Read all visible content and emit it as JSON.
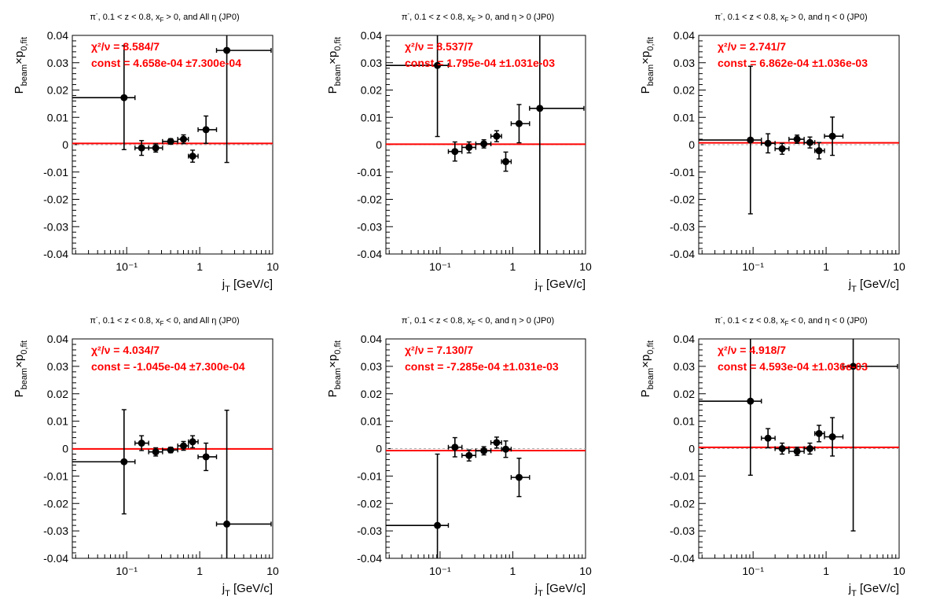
{
  "chart_data": [
    {
      "type": "scatter",
      "title": "π⁻, 0.1 < z < 0.8, x_F > 0, and All η (JP0)",
      "title_parts": {
        "main": "π",
        "sup": "-",
        "rest": ", 0.1 < z < 0.8, x",
        "sub": "F",
        "tail": " > 0, and All η (JP0)"
      },
      "xlabel": "j_T [GeV/c]",
      "ylabel": "P_beam×p_0,fit",
      "xscale": "log",
      "xlim": [
        0.018,
        10
      ],
      "ylim": [
        -0.04,
        0.04
      ],
      "x_tick_labels": [
        "10⁻¹",
        "1",
        "10"
      ],
      "y_tick_labels": [
        "-0.04",
        "-0.03",
        "-0.02",
        "-0.01",
        "0",
        "0.01",
        "0.02",
        "0.03",
        "0.04"
      ],
      "fit_text": {
        "chi2": "χ²/ν = 8.584/7",
        "const": "const = 4.658e-04  ±7.300e-04"
      },
      "fit_value": 0.0004658,
      "fit_color": "#ff0000",
      "points": [
        {
          "x": 0.092,
          "xlo": 0.018,
          "xhi": 0.13,
          "y": 0.0172,
          "ey": 0.019
        },
        {
          "x": 0.16,
          "xlo": 0.13,
          "xhi": 0.2,
          "y": -0.0012,
          "ey": 0.0027
        },
        {
          "x": 0.25,
          "xlo": 0.2,
          "xhi": 0.31,
          "y": -0.0012,
          "ey": 0.0015
        },
        {
          "x": 0.4,
          "xlo": 0.31,
          "xhi": 0.5,
          "y": 0.0012,
          "ey": 0.001
        },
        {
          "x": 0.6,
          "xlo": 0.5,
          "xhi": 0.7,
          "y": 0.002,
          "ey": 0.0016
        },
        {
          "x": 0.8,
          "xlo": 0.7,
          "xhi": 0.95,
          "y": -0.0042,
          "ey": 0.0022
        },
        {
          "x": 1.22,
          "xlo": 0.95,
          "xhi": 1.7,
          "y": 0.0055,
          "ey": 0.005
        },
        {
          "x": 2.35,
          "xlo": 1.7,
          "xhi": 9.5,
          "y": 0.0345,
          "ey": 0.041
        }
      ]
    },
    {
      "type": "scatter",
      "title": "π⁻, 0.1 < z < 0.8, x_F > 0, and η > 0 (JP0)",
      "title_parts": {
        "main": "π",
        "sup": "-",
        "rest": ", 0.1 < z < 0.8, x",
        "sub": "F",
        "tail": " > 0, and  η > 0 (JP0)"
      },
      "xlabel": "j_T [GeV/c]",
      "ylabel": "P_beam×p_0,fit",
      "xscale": "log",
      "xlim": [
        0.018,
        10
      ],
      "ylim": [
        -0.04,
        0.04
      ],
      "x_tick_labels": [
        "10⁻¹",
        "1",
        "10"
      ],
      "y_tick_labels": [
        "-0.04",
        "-0.03",
        "-0.02",
        "-0.01",
        "0",
        "0.01",
        "0.02",
        "0.03",
        "0.04"
      ],
      "fit_text": {
        "chi2": "χ²/ν = 8.537/7",
        "const": "const = 1.795e-04  ±1.031e-03"
      },
      "fit_value": 0.0001795,
      "fit_color": "#ff0000",
      "points": [
        {
          "x": 0.092,
          "xlo": 0.018,
          "xhi": 0.13,
          "y": 0.029,
          "ey": 0.026
        },
        {
          "x": 0.16,
          "xlo": 0.13,
          "xhi": 0.2,
          "y": -0.0025,
          "ey": 0.0035
        },
        {
          "x": 0.25,
          "xlo": 0.2,
          "xhi": 0.31,
          "y": -0.001,
          "ey": 0.002
        },
        {
          "x": 0.4,
          "xlo": 0.31,
          "xhi": 0.5,
          "y": 0.0003,
          "ey": 0.0015
        },
        {
          "x": 0.6,
          "xlo": 0.5,
          "xhi": 0.7,
          "y": 0.0031,
          "ey": 0.002
        },
        {
          "x": 0.8,
          "xlo": 0.7,
          "xhi": 0.95,
          "y": -0.0062,
          "ey": 0.0035
        },
        {
          "x": 1.22,
          "xlo": 0.95,
          "xhi": 1.7,
          "y": 0.0077,
          "ey": 0.007
        },
        {
          "x": 2.35,
          "xlo": 1.7,
          "xhi": 9.5,
          "y": 0.0133,
          "ey": 0.055
        }
      ]
    },
    {
      "type": "scatter",
      "title": "π⁻, 0.1 < z < 0.8, x_F > 0, and η < 0 (JP0)",
      "title_parts": {
        "main": "π",
        "sup": "-",
        "rest": ", 0.1 < z < 0.8, x",
        "sub": "F",
        "tail": " > 0, and  η < 0 (JP0)"
      },
      "xlabel": "j_T [GeV/c]",
      "ylabel": "P_beam×p_0,fit",
      "xscale": "log",
      "xlim": [
        0.018,
        10
      ],
      "ylim": [
        -0.04,
        0.04
      ],
      "x_tick_labels": [
        "10⁻¹",
        "1",
        "10"
      ],
      "y_tick_labels": [
        "-0.04",
        "-0.03",
        "-0.02",
        "-0.01",
        "0",
        "0.01",
        "0.02",
        "0.03",
        "0.04"
      ],
      "fit_text": {
        "chi2": "χ²/ν = 2.741/7",
        "const": "const = 6.862e-04  ±1.036e-03"
      },
      "fit_value": 0.0006862,
      "fit_color": "#ff0000",
      "points": [
        {
          "x": 0.092,
          "xlo": 0.018,
          "xhi": 0.13,
          "y": 0.0017,
          "ey": 0.027
        },
        {
          "x": 0.16,
          "xlo": 0.13,
          "xhi": 0.2,
          "y": 0.0005,
          "ey": 0.0035
        },
        {
          "x": 0.25,
          "xlo": 0.2,
          "xhi": 0.31,
          "y": -0.0015,
          "ey": 0.002
        },
        {
          "x": 0.4,
          "xlo": 0.31,
          "xhi": 0.5,
          "y": 0.002,
          "ey": 0.0015
        },
        {
          "x": 0.6,
          "xlo": 0.5,
          "xhi": 0.7,
          "y": 0.0008,
          "ey": 0.002
        },
        {
          "x": 0.8,
          "xlo": 0.7,
          "xhi": 0.95,
          "y": -0.0022,
          "ey": 0.003
        },
        {
          "x": 1.22,
          "xlo": 0.95,
          "xhi": 1.7,
          "y": 0.0031,
          "ey": 0.007
        }
      ]
    },
    {
      "type": "scatter",
      "title": "π⁻, 0.1 < z < 0.8, x_F < 0, and All η (JP0)",
      "title_parts": {
        "main": "π",
        "sup": "-",
        "rest": ", 0.1 < z < 0.8, x",
        "sub": "F",
        "tail": " < 0, and All η (JP0)"
      },
      "xlabel": "j_T [GeV/c]",
      "ylabel": "P_beam×p_0,fit",
      "xscale": "log",
      "xlim": [
        0.018,
        10
      ],
      "ylim": [
        -0.04,
        0.04
      ],
      "x_tick_labels": [
        "10⁻¹",
        "1",
        "10"
      ],
      "y_tick_labels": [
        "-0.04",
        "-0.03",
        "-0.02",
        "-0.01",
        "0",
        "0.01",
        "0.02",
        "0.03",
        "0.04"
      ],
      "fit_text": {
        "chi2": "χ²/ν = 4.034/7",
        "const": "const = -1.045e-04  ±7.300e-04"
      },
      "fit_value": -0.0001045,
      "fit_color": "#ff0000",
      "points": [
        {
          "x": 0.092,
          "xlo": 0.018,
          "xhi": 0.13,
          "y": -0.0048,
          "ey": 0.019
        },
        {
          "x": 0.16,
          "xlo": 0.13,
          "xhi": 0.2,
          "y": 0.002,
          "ey": 0.0027
        },
        {
          "x": 0.25,
          "xlo": 0.2,
          "xhi": 0.31,
          "y": -0.0012,
          "ey": 0.0015
        },
        {
          "x": 0.4,
          "xlo": 0.31,
          "xhi": 0.5,
          "y": -0.0005,
          "ey": 0.001
        },
        {
          "x": 0.6,
          "xlo": 0.5,
          "xhi": 0.7,
          "y": 0.001,
          "ey": 0.0016
        },
        {
          "x": 0.8,
          "xlo": 0.7,
          "xhi": 0.95,
          "y": 0.0025,
          "ey": 0.0022
        },
        {
          "x": 1.22,
          "xlo": 0.95,
          "xhi": 1.7,
          "y": -0.003,
          "ey": 0.005
        },
        {
          "x": 2.35,
          "xlo": 1.7,
          "xhi": 9.5,
          "y": -0.0275,
          "ey": 0.0415
        }
      ]
    },
    {
      "type": "scatter",
      "title": "π⁻, 0.1 < z < 0.8, x_F < 0, and η > 0 (JP0)",
      "title_parts": {
        "main": "π",
        "sup": "-",
        "rest": ", 0.1 < z < 0.8, x",
        "sub": "F",
        "tail": " < 0, and  η > 0 (JP0)"
      },
      "xlabel": "j_T [GeV/c]",
      "ylabel": "P_beam×p_0,fit",
      "xscale": "log",
      "xlim": [
        0.018,
        10
      ],
      "ylim": [
        -0.04,
        0.04
      ],
      "x_tick_labels": [
        "10⁻¹",
        "1",
        "10"
      ],
      "y_tick_labels": [
        "-0.04",
        "-0.03",
        "-0.02",
        "-0.01",
        "0",
        "0.01",
        "0.02",
        "0.03",
        "0.04"
      ],
      "fit_text": {
        "chi2": "χ²/ν = 7.130/7",
        "const": "const = -7.285e-04  ±1.031e-03"
      },
      "fit_value": -0.0007285,
      "fit_color": "#ff0000",
      "points": [
        {
          "x": 0.092,
          "xlo": 0.018,
          "xhi": 0.13,
          "y": -0.028,
          "ey": 0.026
        },
        {
          "x": 0.16,
          "xlo": 0.13,
          "xhi": 0.2,
          "y": 0.0005,
          "ey": 0.0035
        },
        {
          "x": 0.25,
          "xlo": 0.2,
          "xhi": 0.31,
          "y": -0.0025,
          "ey": 0.002
        },
        {
          "x": 0.4,
          "xlo": 0.31,
          "xhi": 0.5,
          "y": -0.0008,
          "ey": 0.0015
        },
        {
          "x": 0.6,
          "xlo": 0.5,
          "xhi": 0.7,
          "y": 0.0022,
          "ey": 0.002
        },
        {
          "x": 0.8,
          "xlo": 0.7,
          "xhi": 0.95,
          "y": -0.0002,
          "ey": 0.003
        },
        {
          "x": 1.22,
          "xlo": 0.95,
          "xhi": 1.7,
          "y": -0.0105,
          "ey": 0.007
        }
      ]
    },
    {
      "type": "scatter",
      "title": "π⁻, 0.1 < z < 0.8, x_F < 0, and η < 0 (JP0)",
      "title_parts": {
        "main": "π",
        "sup": "-",
        "rest": ", 0.1 < z < 0.8, x",
        "sub": "F",
        "tail": " < 0, and  η < 0 (JP0)"
      },
      "xlabel": "j_T [GeV/c]",
      "ylabel": "P_beam×p_0,fit",
      "xscale": "log",
      "xlim": [
        0.018,
        10
      ],
      "ylim": [
        -0.04,
        0.04
      ],
      "x_tick_labels": [
        "10⁻¹",
        "1",
        "10"
      ],
      "y_tick_labels": [
        "-0.04",
        "-0.03",
        "-0.02",
        "-0.01",
        "0",
        "0.01",
        "0.02",
        "0.03",
        "0.04"
      ],
      "fit_text": {
        "chi2": "χ²/ν = 4.918/7",
        "const": "const = 4.593e-04  ±1.036e-03"
      },
      "fit_value": 0.0004593,
      "fit_color": "#ff0000",
      "points": [
        {
          "x": 0.092,
          "xlo": 0.018,
          "xhi": 0.13,
          "y": 0.0173,
          "ey": 0.027
        },
        {
          "x": 0.16,
          "xlo": 0.13,
          "xhi": 0.2,
          "y": 0.0038,
          "ey": 0.0035
        },
        {
          "x": 0.25,
          "xlo": 0.2,
          "xhi": 0.31,
          "y": 0.0,
          "ey": 0.002
        },
        {
          "x": 0.4,
          "xlo": 0.31,
          "xhi": 0.5,
          "y": -0.001,
          "ey": 0.0015
        },
        {
          "x": 0.6,
          "xlo": 0.5,
          "xhi": 0.7,
          "y": 0.0,
          "ey": 0.002
        },
        {
          "x": 0.8,
          "xlo": 0.7,
          "xhi": 0.95,
          "y": 0.0055,
          "ey": 0.003
        },
        {
          "x": 1.22,
          "xlo": 0.95,
          "xhi": 1.7,
          "y": 0.0043,
          "ey": 0.007
        },
        {
          "x": 2.35,
          "xlo": 1.7,
          "xhi": 9.5,
          "y": 0.03,
          "ey": 0.06
        }
      ]
    }
  ]
}
